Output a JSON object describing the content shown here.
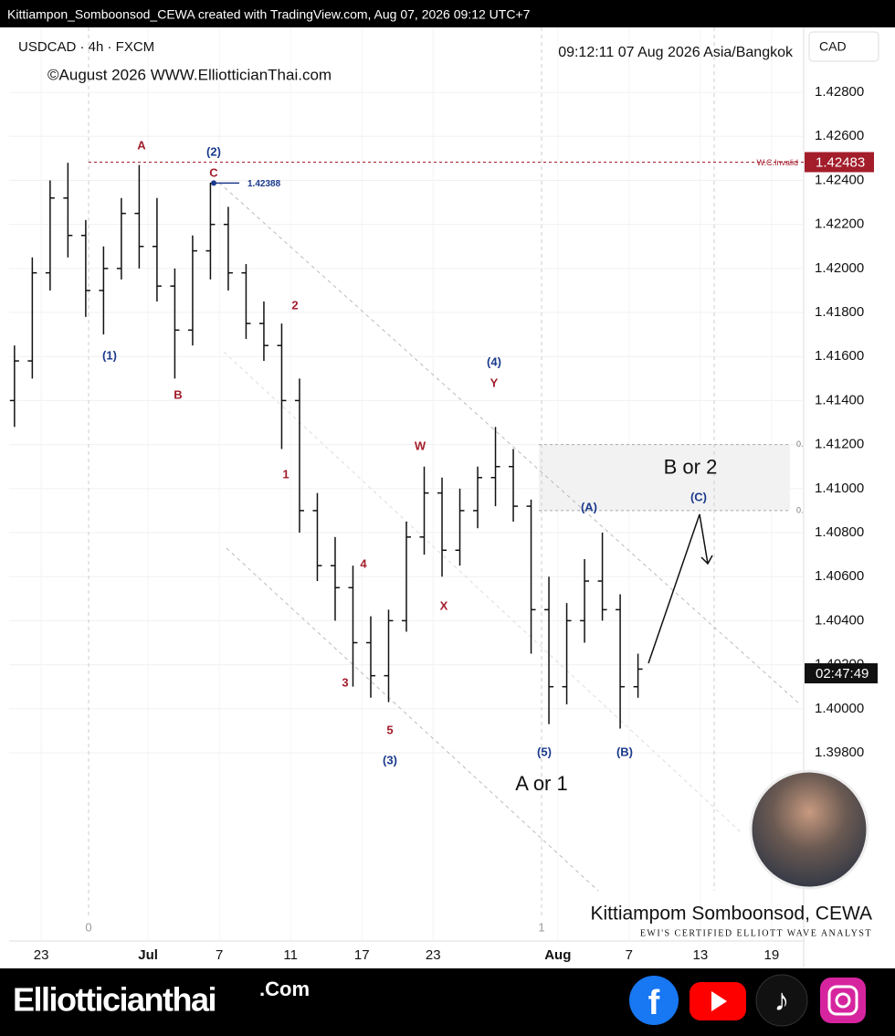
{
  "header": "Kittiampon_Somboonsod_CEWA created with TradingView.com, Aug 07, 2026 09:12 UTC+7",
  "footer": {
    "brand": "Elliotticianthai",
    "brand_suffix": ".Com"
  },
  "chart_data": {
    "type": "ohlc",
    "title": "USDCAD · 4h · FXCM",
    "subtitle": "©August 2026 WWW.ElliotticianThai.com",
    "clock": "09:12:11 07 Aug 2026 Asia/Bangkok",
    "currency": "CAD",
    "countdown": "02:47:49",
    "color": "#111111",
    "x": [
      -1.5,
      -0.5,
      0.5,
      1.5,
      2.5,
      3.5,
      4.5,
      5.5,
      6.5,
      7.5,
      8.5,
      9.5,
      10.5,
      11.5,
      12.5,
      13.5,
      14.5,
      15.5,
      16.5,
      17.5,
      18.5,
      19.5,
      20.5,
      21.5,
      22.5,
      23.5,
      24.5,
      25.5,
      26.5,
      27.5,
      28.5,
      29.5,
      30.5,
      31.5,
      32.5,
      33.5
    ],
    "open": [
      1.414,
      1.4158,
      1.4198,
      1.4232,
      1.4215,
      1.419,
      1.42,
      1.4225,
      1.421,
      1.4192,
      1.4172,
      1.4208,
      1.422,
      1.4198,
      1.4175,
      1.4165,
      1.414,
      1.409,
      1.4065,
      1.4055,
      1.403,
      1.4015,
      1.404,
      1.4078,
      1.4098,
      1.4072,
      1.409,
      1.4105,
      1.411,
      1.4092,
      1.4045,
      1.401,
      1.404,
      1.4058,
      1.4045,
      1.401
    ],
    "high": [
      1.4165,
      1.4205,
      1.424,
      1.4248,
      1.4222,
      1.421,
      1.4232,
      1.4247,
      1.4232,
      1.42,
      1.4215,
      1.4239,
      1.4228,
      1.4202,
      1.4185,
      1.4175,
      1.415,
      1.4098,
      1.4078,
      1.4065,
      1.4042,
      1.4045,
      1.4085,
      1.411,
      1.4105,
      1.41,
      1.411,
      1.4128,
      1.4118,
      1.4095,
      1.406,
      1.4048,
      1.4068,
      1.408,
      1.4052,
      1.4025
    ],
    "low": [
      1.4128,
      1.415,
      1.419,
      1.4205,
      1.4178,
      1.417,
      1.4195,
      1.42,
      1.4185,
      1.415,
      1.4165,
      1.4195,
      1.419,
      1.4168,
      1.4158,
      1.4118,
      1.408,
      1.4058,
      1.404,
      1.401,
      1.4005,
      1.4003,
      1.4035,
      1.407,
      1.406,
      1.4065,
      1.4082,
      1.4092,
      1.4085,
      1.4025,
      1.3993,
      1.4002,
      1.403,
      1.404,
      1.3991,
      1.4005
    ],
    "close": [
      1.4158,
      1.4198,
      1.4232,
      1.4215,
      1.419,
      1.42,
      1.4225,
      1.421,
      1.4192,
      1.4172,
      1.4208,
      1.422,
      1.4198,
      1.4175,
      1.4165,
      1.414,
      1.409,
      1.4065,
      1.4055,
      1.403,
      1.4015,
      1.404,
      1.4078,
      1.4098,
      1.4072,
      1.409,
      1.4105,
      1.411,
      1.4092,
      1.4045,
      1.401,
      1.404,
      1.4058,
      1.4045,
      1.401,
      1.4018
    ],
    "xlim": [
      -1.8,
      42.8
    ],
    "xticks": [
      {
        "value": 0,
        "label": "23"
      },
      {
        "value": 6,
        "label": "Jul"
      },
      {
        "value": 10,
        "label": "7"
      },
      {
        "value": 14,
        "label": "11"
      },
      {
        "value": 18,
        "label": "17"
      },
      {
        "value": 22,
        "label": "23"
      },
      {
        "value": 29,
        "label": "Aug"
      },
      {
        "value": 33,
        "label": "7"
      },
      {
        "value": 37,
        "label": "13"
      },
      {
        "value": 41,
        "label": "19"
      }
    ],
    "ylim": [
      1.38945,
      1.43095
    ],
    "yticks": [
      {
        "value": 1.398,
        "label": "1.39800"
      },
      {
        "value": 1.4,
        "label": "1.40000"
      },
      {
        "value": 1.402,
        "label": "1.40200"
      },
      {
        "value": 1.404,
        "label": "1.40400"
      },
      {
        "value": 1.406,
        "label": "1.40600"
      },
      {
        "value": 1.408,
        "label": "1.40800"
      },
      {
        "value": 1.41,
        "label": "1.41000"
      },
      {
        "value": 1.412,
        "label": "1.41200"
      },
      {
        "value": 1.414,
        "label": "1.41400"
      },
      {
        "value": 1.416,
        "label": "1.41600"
      },
      {
        "value": 1.418,
        "label": "1.41800"
      },
      {
        "value": 1.42,
        "label": "1.42000"
      },
      {
        "value": 1.422,
        "label": "1.42200"
      },
      {
        "value": 1.424,
        "label": "1.42400"
      },
      {
        "value": 1.426,
        "label": "1.42600"
      },
      {
        "value": 1.428,
        "label": "1.42800"
      }
    ],
    "invalidation": {
      "value": 1.42483,
      "label": "1.42483",
      "name": "W.C.Invalid"
    },
    "level": {
      "value": 1.42388,
      "label": "1.42388"
    },
    "zone": {
      "top": 1.412,
      "bottom": 1.409,
      "top_label": "0.",
      "bottom_label": "0.",
      "name": "B or 2"
    },
    "big_label": "A or 1",
    "time_fib": [
      "0",
      "1"
    ],
    "annotations": [
      {
        "text": "A",
        "color": "#a31d2b"
      },
      {
        "text": "(2)",
        "color": "#1a3a8c"
      },
      {
        "text": "C",
        "color": "#a31d2b"
      },
      {
        "text": "(1)",
        "color": "#1a3a8c"
      },
      {
        "text": "B",
        "color": "#a31d2b"
      },
      {
        "text": "2",
        "color": "#a31d2b"
      },
      {
        "text": "1",
        "color": "#a31d2b"
      },
      {
        "text": "4",
        "color": "#a31d2b"
      },
      {
        "text": "3",
        "color": "#a31d2b"
      },
      {
        "text": "5",
        "color": "#a31d2b"
      },
      {
        "text": "(3)",
        "color": "#1a3a8c"
      },
      {
        "text": "W",
        "color": "#a31d2b"
      },
      {
        "text": "X",
        "color": "#a31d2b"
      },
      {
        "text": "(4)",
        "color": "#1a3a8c"
      },
      {
        "text": "Y",
        "color": "#a31d2b"
      },
      {
        "text": "(5)",
        "color": "#1a3a8c"
      },
      {
        "text": "(A)",
        "color": "#1a3a8c"
      },
      {
        "text": "(B)",
        "color": "#1a3a8c"
      },
      {
        "text": "(C)",
        "color": "#1a3a8c"
      }
    ],
    "author": "Kittiampom Somboonsod, CEWA",
    "author_title": "EWI's Certified Elliott Wave Analyst"
  }
}
